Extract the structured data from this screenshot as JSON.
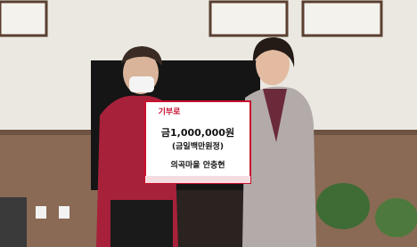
{
  "board": {
    "logo": "기부로",
    "amount": "금1,000,000원",
    "amount_words": "(금일백만원정)",
    "donor": "의곡마을 안충현"
  }
}
